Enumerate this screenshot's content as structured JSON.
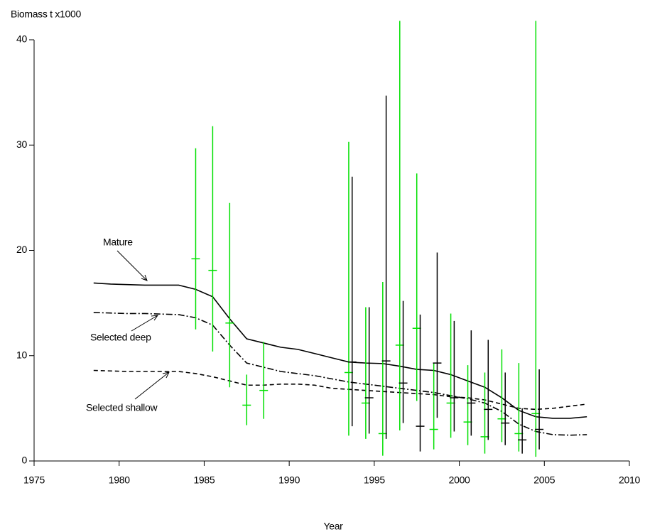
{
  "chart_data": {
    "type": "line",
    "ylabel": "Biomass t x1000",
    "xlabel": "Year",
    "xlim": [
      1975,
      2010
    ],
    "ylim": [
      0,
      40
    ],
    "xticks": [
      1975,
      1980,
      1985,
      1990,
      1995,
      2000,
      2005,
      2010
    ],
    "yticks": [
      0,
      10,
      20,
      30,
      40
    ],
    "x": [
      1978.5,
      1979.5,
      1980.5,
      1981.5,
      1982.5,
      1983.5,
      1984.5,
      1985.5,
      1986.5,
      1987.5,
      1988.5,
      1989.5,
      1990.5,
      1991.5,
      1992.5,
      1993.5,
      1994.5,
      1995.5,
      1996.5,
      1997.5,
      1998.5,
      1999.5,
      2000.5,
      2001.5,
      2002.5,
      2003.5,
      2004.5,
      2005.5,
      2006.5,
      2007.5
    ],
    "series": [
      {
        "name": "Mature",
        "color": "#000000",
        "style": "solid",
        "values": [
          16.9,
          16.8,
          16.75,
          16.7,
          16.7,
          16.7,
          16.3,
          15.6,
          13.5,
          11.6,
          11.2,
          10.8,
          10.6,
          10.2,
          9.8,
          9.4,
          9.3,
          9.25,
          9.0,
          8.7,
          8.6,
          8.2,
          7.6,
          7.0,
          6.0,
          4.8,
          4.2,
          4.05,
          4.05,
          4.2
        ]
      },
      {
        "name": "Selected deep",
        "color": "#000000",
        "style": "dashdot",
        "values": [
          14.1,
          14.05,
          14.0,
          14.0,
          13.95,
          13.9,
          13.6,
          12.9,
          11.0,
          9.3,
          8.9,
          8.5,
          8.3,
          8.1,
          7.8,
          7.5,
          7.3,
          7.1,
          6.9,
          6.7,
          6.5,
          6.2,
          5.9,
          5.5,
          4.7,
          3.5,
          2.8,
          2.5,
          2.45,
          2.5
        ]
      },
      {
        "name": "Selected shallow",
        "color": "#000000",
        "style": "dashed",
        "values": [
          8.6,
          8.55,
          8.5,
          8.5,
          8.5,
          8.5,
          8.3,
          8.0,
          7.6,
          7.2,
          7.2,
          7.3,
          7.3,
          7.2,
          6.9,
          6.8,
          6.7,
          6.6,
          6.5,
          6.4,
          6.3,
          6.1,
          6.0,
          5.8,
          5.4,
          5.0,
          4.9,
          5.0,
          5.2,
          5.4
        ]
      }
    ],
    "estimates": [
      {
        "color": "#00e000",
        "x": [
          1984.5,
          1985.5,
          1986.5,
          1987.5,
          1988.5,
          1993.5,
          1994.5,
          1995.5,
          1996.5,
          1997.5,
          1998.5,
          1999.5,
          2000.5,
          2001.5,
          2002.5,
          2003.5,
          2004.5
        ],
        "values": [
          19.2,
          18.1,
          13.1,
          5.3,
          6.7,
          8.4,
          5.5,
          2.6,
          11.0,
          12.6,
          3.0,
          5.5,
          3.7,
          2.3,
          4.0,
          2.6,
          4.5
        ],
        "lower": [
          12.5,
          10.4,
          7.0,
          3.4,
          4.0,
          2.4,
          2.1,
          0.5,
          2.9,
          5.7,
          1.1,
          2.2,
          1.5,
          0.7,
          1.8,
          0.9,
          0.4
        ],
        "upper": [
          29.7,
          31.8,
          24.5,
          8.2,
          11.3,
          30.3,
          14.6,
          17.0,
          41.8,
          27.3,
          9.3,
          14.0,
          9.1,
          8.4,
          10.6,
          9.3,
          41.8
        ]
      },
      {
        "color": "#000000",
        "x": [
          1993.7,
          1994.7,
          1995.7,
          1996.7,
          1997.7,
          1998.7,
          1999.7,
          2000.7,
          2001.7,
          2002.7,
          2003.7,
          2004.7
        ],
        "values": [
          9.4,
          6.0,
          9.5,
          7.4,
          3.3,
          9.3,
          6.0,
          5.5,
          4.9,
          3.6,
          2.0,
          3.0
        ],
        "lower": [
          3.3,
          2.6,
          2.1,
          3.6,
          0.9,
          4.1,
          2.8,
          2.4,
          2.0,
          1.5,
          0.7,
          1.1
        ],
        "upper": [
          27.0,
          14.6,
          34.7,
          15.2,
          13.9,
          19.8,
          13.3,
          12.4,
          11.5,
          8.4,
          5.0,
          8.7
        ]
      }
    ]
  }
}
